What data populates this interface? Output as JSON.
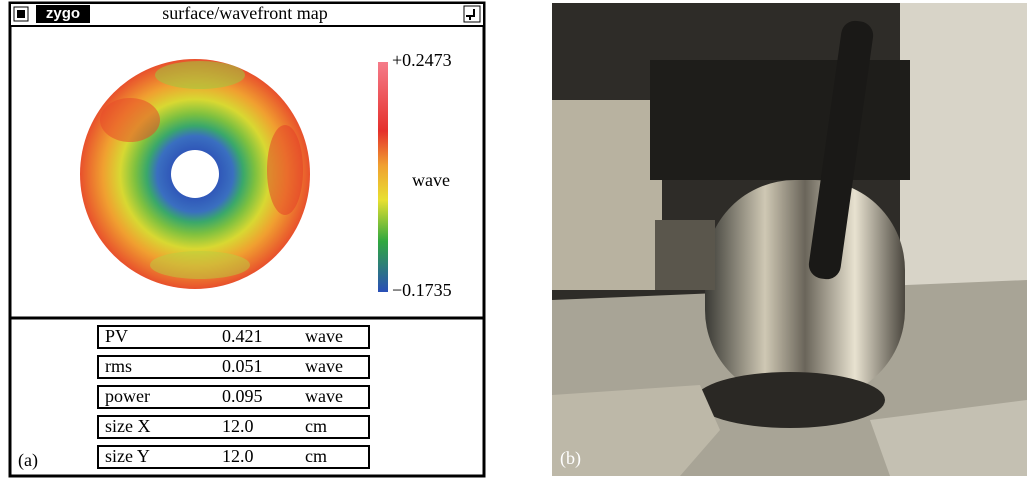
{
  "panel_a": {
    "header": {
      "logo": "zygo",
      "title": "surface/wavefront map"
    },
    "colorbar": {
      "max_label": "+0.2473",
      "unit": "wave",
      "min_label": "−0.1735"
    },
    "table": {
      "rows": [
        [
          "PV",
          "0.421",
          "wave"
        ],
        [
          "rms",
          "0.051",
          "wave"
        ],
        [
          "power",
          "0.095",
          "wave"
        ],
        [
          "size X",
          "12.0",
          "cm"
        ],
        [
          "size Y",
          "12.0",
          "cm"
        ]
      ]
    },
    "label": "(a)"
  },
  "panel_b": {
    "label": "(b)"
  }
}
